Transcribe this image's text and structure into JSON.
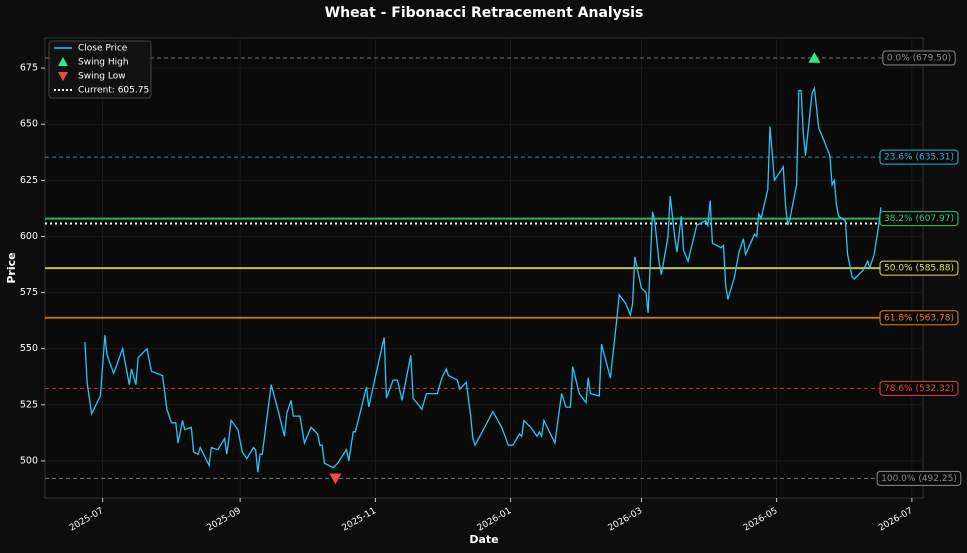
{
  "chart_data": {
    "type": "line",
    "title": "Wheat - Fibonacci Retracement Analysis",
    "x_label": "Date",
    "y_label": "Price",
    "x": [
      "2025-06-23",
      "2025-06-24",
      "2025-06-26",
      "2025-06-30",
      "2025-07-02",
      "2025-07-03",
      "2025-07-06",
      "2025-07-10",
      "2025-07-13",
      "2025-07-14",
      "2025-07-16",
      "2025-07-17",
      "2025-07-21",
      "2025-07-23",
      "2025-07-28",
      "2025-07-30",
      "2025-08-01",
      "2025-08-03",
      "2025-08-04",
      "2025-08-06",
      "2025-08-07",
      "2025-08-10",
      "2025-08-11",
      "2025-08-13",
      "2025-08-14",
      "2025-08-18",
      "2025-08-19",
      "2025-08-22",
      "2025-08-25",
      "2025-08-26",
      "2025-08-28",
      "2025-08-31",
      "2025-09-02",
      "2025-09-04",
      "2025-09-07",
      "2025-09-08",
      "2025-09-09",
      "2025-09-10",
      "2025-09-11",
      "2025-09-15",
      "2025-09-18",
      "2025-09-21",
      "2025-09-22",
      "2025-09-24",
      "2025-09-25",
      "2025-09-28",
      "2025-09-30",
      "2025-10-03",
      "2025-10-06",
      "2025-10-07",
      "2025-10-08",
      "2025-10-09",
      "2025-10-13",
      "2025-10-15",
      "2025-10-19",
      "2025-10-20",
      "2025-10-22",
      "2025-10-23",
      "2025-10-28",
      "2025-10-29",
      "2025-11-02",
      "2025-11-05",
      "2025-11-06",
      "2025-11-09",
      "2025-11-11",
      "2025-11-13",
      "2025-11-17",
      "2025-11-18",
      "2025-11-22",
      "2025-11-24",
      "2025-11-29",
      "2025-12-01",
      "2025-12-03",
      "2025-12-04",
      "2025-12-08",
      "2025-12-09",
      "2025-12-12",
      "2025-12-14",
      "2025-12-15",
      "2025-12-16",
      "2025-12-24",
      "2025-12-28",
      "2025-12-31",
      "2026-01-02",
      "2026-01-05",
      "2026-01-06",
      "2026-01-07",
      "2026-01-10",
      "2026-01-13",
      "2026-01-14",
      "2026-01-15",
      "2026-01-16",
      "2026-01-21",
      "2026-01-24",
      "2026-01-26",
      "2026-01-28",
      "2026-01-29",
      "2026-02-01",
      "2026-02-04",
      "2026-02-05",
      "2026-02-06",
      "2026-02-10",
      "2026-02-11",
      "2026-02-15",
      "2026-02-18",
      "2026-02-19",
      "2026-02-22",
      "2026-02-24",
      "2026-02-25",
      "2026-02-26",
      "2026-03-01",
      "2026-03-03",
      "2026-03-04",
      "2026-03-06",
      "2026-03-07",
      "2026-03-09",
      "2026-03-10",
      "2026-03-13",
      "2026-03-14",
      "2026-03-16",
      "2026-03-17",
      "2026-03-19",
      "2026-03-20",
      "2026-03-22",
      "2026-03-26",
      "2026-03-30",
      "2026-03-31",
      "2026-04-01",
      "2026-04-02",
      "2026-04-06",
      "2026-04-07",
      "2026-04-08",
      "2026-04-09",
      "2026-04-12",
      "2026-04-14",
      "2026-04-16",
      "2026-04-17",
      "2026-04-21",
      "2026-04-22",
      "2026-04-23",
      "2026-04-24",
      "2026-04-27",
      "2026-04-28",
      "2026-04-30",
      "2026-05-04",
      "2026-05-05",
      "2026-05-06",
      "2026-05-07",
      "2026-05-10",
      "2026-05-11",
      "2026-05-12",
      "2026-05-13",
      "2026-05-14",
      "2026-05-17",
      "2026-05-18",
      "2026-05-20",
      "2026-05-21",
      "2026-05-25",
      "2026-05-26",
      "2026-05-27",
      "2026-05-28",
      "2026-05-29",
      "2026-06-01",
      "2026-06-02",
      "2026-06-04",
      "2026-06-05",
      "2026-06-09",
      "2026-06-11",
      "2026-06-12",
      "2026-06-14",
      "2026-06-16",
      "2026-06-17"
    ],
    "series": [
      {
        "name": "Close Price",
        "color": "#29c5f6",
        "values": [
          553,
          535,
          521,
          529,
          556,
          547,
          539,
          550,
          534,
          541,
          534,
          546,
          550,
          540,
          538,
          523,
          517,
          517,
          508,
          518,
          514,
          515,
          504,
          503,
          506,
          498,
          506,
          505,
          510,
          503,
          518,
          514,
          504,
          501,
          506,
          505,
          495,
          503,
          503,
          534,
          523,
          511,
          521,
          527,
          520,
          520,
          508,
          515,
          512,
          507,
          507,
          499,
          497,
          499,
          505,
          500,
          513,
          513,
          533,
          524,
          542,
          555,
          528,
          536,
          536,
          527,
          547,
          528,
          523,
          530,
          530,
          537,
          541,
          538,
          536,
          532,
          535,
          520,
          510,
          507,
          522,
          515,
          507,
          507,
          512,
          511,
          518,
          515,
          511,
          513,
          511,
          518,
          508,
          530,
          524,
          524,
          542,
          530,
          526,
          537,
          530,
          529,
          552,
          537,
          564,
          574,
          570,
          565,
          570,
          591,
          577,
          575,
          566,
          611,
          607,
          588,
          583,
          600,
          618,
          600,
          593,
          609,
          594,
          589,
          605,
          607,
          605,
          616,
          597,
          595,
          596,
          578,
          572,
          582,
          593,
          599,
          592,
          601,
          600,
          610,
          608,
          621,
          649,
          625,
          631,
          614,
          605,
          608,
          623,
          665,
          665,
          646,
          636,
          664,
          666,
          648,
          646,
          636,
          623,
          625,
          614,
          609,
          607,
          592,
          582,
          581,
          585,
          589,
          586,
          592,
          605,
          613
        ]
      }
    ],
    "swing_high": {
      "name": "Swing High",
      "x": "2026-05-18",
      "value": 679.5,
      "color": "#2ee88a"
    },
    "swing_low": {
      "name": "Swing Low",
      "x": "2025-10-14",
      "value": 492.25,
      "color": "#f04848"
    },
    "current": {
      "label": "Current: 605.75",
      "value": 605.75,
      "color": "#ffffff"
    },
    "levels": [
      {
        "label": "0.0% (679.50)",
        "value": 679.5,
        "color": "#8c8c8c",
        "style": "dashed"
      },
      {
        "label": "23.6% (635.31)",
        "value": 635.31,
        "color": "#3ab0d8",
        "style": "dashed"
      },
      {
        "label": "38.2% (607.97)",
        "value": 607.97,
        "color": "#2ecc71",
        "style": "solid"
      },
      {
        "label": "50.0% (585.88)",
        "value": 585.88,
        "color": "#e3e349",
        "style": "solid"
      },
      {
        "label": "61.8% (563.78)",
        "value": 563.78,
        "color": "#e67e22",
        "style": "solid"
      },
      {
        "label": "78.6% (532.32)",
        "value": 532.32,
        "color": "#e04a3f",
        "style": "dashed"
      },
      {
        "label": "100.0% (492.25)",
        "value": 492.25,
        "color": "#8c8c8c",
        "style": "dashed"
      }
    ],
    "xlim": [
      "2025-06-05",
      "2026-07-06"
    ],
    "xticks": [
      "2025-07",
      "2025-09",
      "2025-11",
      "2026-01",
      "2026-03",
      "2026-05",
      "2026-07"
    ],
    "ylim": [
      483.5,
      688.4
    ],
    "yticks": [
      500,
      525,
      550,
      575,
      600,
      625,
      650,
      675
    ],
    "grid": true
  }
}
